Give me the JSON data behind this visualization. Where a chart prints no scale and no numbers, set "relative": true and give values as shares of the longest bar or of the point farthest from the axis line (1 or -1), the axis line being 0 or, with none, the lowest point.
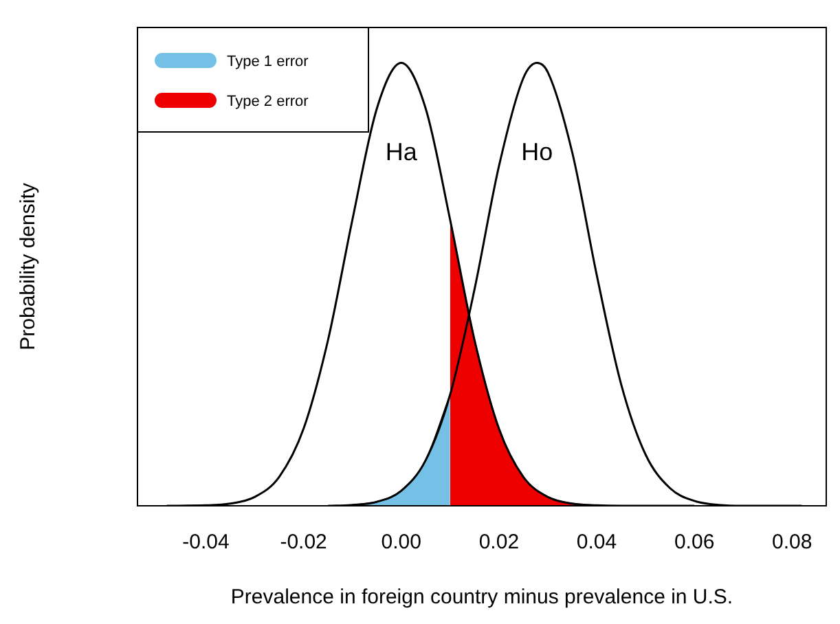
{
  "chart_data": {
    "type": "line",
    "relative": true,
    "xlabel": "Prevalence in foreign country minus prevalence in U.S.",
    "ylabel": "Probability density",
    "xlim": [
      -0.054,
      0.087
    ],
    "xticks": [
      -0.04,
      -0.02,
      {
        "value": 0,
        "label": "0.00"
      },
      0.02,
      0.04,
      0.06,
      0.08
    ],
    "legend": "top left",
    "grid": false,
    "marker": "none",
    "line_style": "solid",
    "series": [
      {
        "name": "Ha",
        "color": "#000000",
        "x": [
          -0.048,
          -0.04,
          -0.035,
          -0.03,
          -0.025,
          -0.02,
          -0.015,
          -0.01,
          -0.005,
          0,
          0.005,
          0.01,
          0.015,
          0.02,
          0.025,
          0.03,
          0.035,
          0.04,
          0.045,
          0.05,
          0.055,
          0.06
        ],
        "values": [
          0,
          0.001,
          0.005,
          0.02,
          0.065,
          0.174,
          0.374,
          0.646,
          0.897,
          1,
          0.897,
          0.646,
          0.374,
          0.174,
          0.065,
          0.02,
          0.005,
          0.001,
          0,
          0,
          0,
          0
        ]
      },
      {
        "name": "Ho",
        "color": "#000000",
        "x": [
          -0.015,
          -0.01,
          -0.005,
          0,
          0.005,
          0.01,
          0.015,
          0.02,
          0.025,
          0.0278,
          0.03,
          0.035,
          0.04,
          0.045,
          0.05,
          0.055,
          0.06,
          0.065,
          0.07,
          0.075,
          0.082
        ],
        "values": [
          0,
          0.002,
          0.009,
          0.034,
          0.103,
          0.251,
          0.489,
          0.767,
          0.966,
          1,
          0.979,
          0.798,
          0.522,
          0.275,
          0.116,
          0.04,
          0.011,
          0.002,
          0,
          0,
          0
        ]
      },
      {
        "name": "Type 1 error",
        "type": "area",
        "color": "#74c0e6",
        "x": [
          -0.01,
          -0.005,
          0,
          0.005,
          0.01
        ],
        "values": [
          0.002,
          0.009,
          0.034,
          0.103,
          0.251
        ]
      },
      {
        "name": "Type 2 error",
        "type": "area",
        "color": "#ee0000",
        "x": [
          0.01,
          0.015,
          0.02,
          0.025,
          0.03,
          0.035,
          0.04
        ],
        "values": [
          0.646,
          0.374,
          0.174,
          0.065,
          0.02,
          0.005,
          0.001
        ]
      }
    ]
  }
}
